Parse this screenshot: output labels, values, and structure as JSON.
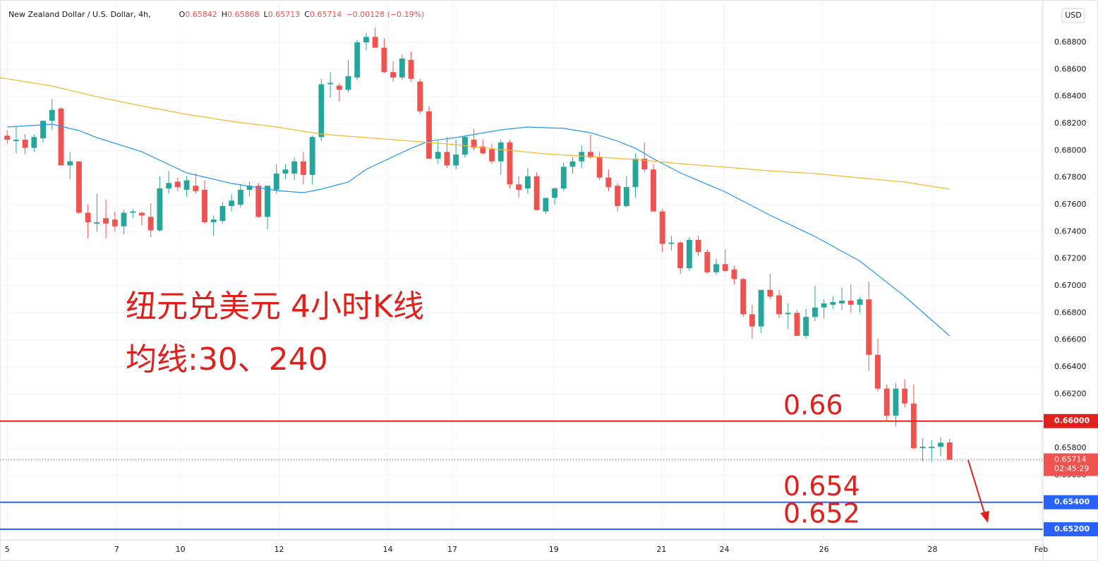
{
  "header": {
    "symbol": "New Zealand Dollar / U.S. Dollar, 4h,",
    "ohlc": [
      {
        "k": "O",
        "v": "0.65842"
      },
      {
        "k": "H",
        "v": "0.65868"
      },
      {
        "k": "L",
        "v": "0.65713"
      },
      {
        "k": "C",
        "v": "0.65714"
      }
    ],
    "change": "−0.00128 (−0.19%)",
    "currency": "USD"
  },
  "chart_data": {
    "type": "candlestick",
    "annotations": [
      "纽元兑美元 4小时K线",
      "均线:30、240"
    ],
    "up_color": "#26a69a",
    "down_color": "#ef5350",
    "xlim": [
      -0.8,
      115.4
    ],
    "xticks": [
      {
        "value": 0,
        "label": "5"
      },
      {
        "value": 12.2,
        "label": "7"
      },
      {
        "value": 19.3,
        "label": "10"
      },
      {
        "value": 30.3,
        "label": "12"
      },
      {
        "value": 42.4,
        "label": "14"
      },
      {
        "value": 49.6,
        "label": "17"
      },
      {
        "value": 60.9,
        "label": "19"
      },
      {
        "value": 72.9,
        "label": "21"
      },
      {
        "value": 79.9,
        "label": "24"
      },
      {
        "value": 91,
        "label": "26"
      },
      {
        "value": 103.1,
        "label": "28"
      },
      {
        "value": 115.2,
        "label": "Feb"
      }
    ],
    "ylim": [
      0.65122,
      0.69087
    ],
    "yticks": [
      {
        "value": 0.656,
        "label": "0.65600"
      },
      {
        "value": 0.658,
        "label": "0.65800"
      },
      {
        "value": 0.66,
        "label": "0.66000"
      },
      {
        "value": 0.662,
        "label": "0.66200"
      },
      {
        "value": 0.664,
        "label": "0.66400"
      },
      {
        "value": 0.666,
        "label": "0.66600"
      },
      {
        "value": 0.668,
        "label": "0.66800"
      },
      {
        "value": 0.67,
        "label": "0.67000"
      },
      {
        "value": 0.672,
        "label": "0.67200"
      },
      {
        "value": 0.674,
        "label": "0.67400"
      },
      {
        "value": 0.676,
        "label": "0.67600"
      },
      {
        "value": 0.678,
        "label": "0.67800"
      },
      {
        "value": 0.68,
        "label": "0.68000"
      },
      {
        "value": 0.682,
        "label": "0.68200"
      },
      {
        "value": 0.684,
        "label": "0.68400"
      },
      {
        "value": 0.686,
        "label": "0.68600"
      },
      {
        "value": 0.688,
        "label": "0.68800"
      }
    ],
    "grid": true,
    "open": [
      0.6811,
      0.6807,
      0.6808,
      0.6802,
      0.6809,
      0.6822,
      0.6831,
      0.6789,
      0.6792,
      0.6754,
      0.6746,
      0.675,
      0.6749,
      0.6744,
      0.6754,
      0.6754,
      0.6751,
      0.6741,
      0.6772,
      0.6777,
      0.6771,
      0.6774,
      0.6771,
      0.6747,
      0.6748,
      0.6759,
      0.676,
      0.6771,
      0.6774,
      0.6751,
      0.6771,
      0.6783,
      0.6783,
      0.6792,
      0.6782,
      0.681,
      0.6849,
      0.6848,
      0.6845,
      0.6854,
      0.688,
      0.6884,
      0.6876,
      0.6858,
      0.6854,
      0.6867,
      0.6851,
      0.6829,
      0.6794,
      0.6799,
      0.6789,
      0.6797,
      0.6808,
      0.6803,
      0.6801,
      0.6792,
      0.6806,
      0.6775,
      0.6772,
      0.6781,
      0.6755,
      0.6765,
      0.6772,
      0.6788,
      0.6792,
      0.6799,
      0.6795,
      0.678,
      0.6774,
      0.6759,
      0.6773,
      0.6794,
      0.6786,
      0.6755,
      0.6731,
      0.6732,
      0.6713,
      0.6734,
      0.6725,
      0.671,
      0.6716,
      0.6712,
      0.6705,
      0.6679,
      0.667,
      0.6697,
      0.6693,
      0.6679,
      0.668,
      0.6663,
      0.6677,
      0.6684,
      0.6686,
      0.6687,
      0.6689,
      0.6686,
      0.669,
      0.6649,
      0.6624,
      0.6604,
      0.6624,
      0.6613,
      0.658,
      0.658,
      0.6581,
      0.65842
    ],
    "high": [
      0.6815,
      0.6818,
      0.6812,
      0.6812,
      0.6822,
      0.6838,
      0.6832,
      0.6799,
      0.6792,
      0.676,
      0.6768,
      0.6764,
      0.6755,
      0.6756,
      0.6757,
      0.6755,
      0.6761,
      0.6781,
      0.6785,
      0.678,
      0.6781,
      0.6783,
      0.6778,
      0.6752,
      0.6762,
      0.6768,
      0.6775,
      0.6777,
      0.6776,
      0.6773,
      0.679,
      0.679,
      0.6795,
      0.6799,
      0.6811,
      0.6853,
      0.6858,
      0.685,
      0.6867,
      0.6882,
      0.6887,
      0.6891,
      0.6883,
      0.6866,
      0.6871,
      0.6873,
      0.6853,
      0.6833,
      0.6807,
      0.681,
      0.6808,
      0.6811,
      0.6816,
      0.6808,
      0.6805,
      0.6808,
      0.6808,
      0.6781,
      0.6787,
      0.6784,
      0.6765,
      0.6773,
      0.6791,
      0.6795,
      0.6804,
      0.6812,
      0.6799,
      0.6786,
      0.6776,
      0.6781,
      0.6798,
      0.6806,
      0.679,
      0.6757,
      0.6737,
      0.6733,
      0.6736,
      0.6737,
      0.6727,
      0.672,
      0.6727,
      0.6715,
      0.6706,
      0.6686,
      0.6696,
      0.6709,
      0.6697,
      0.6687,
      0.6682,
      0.6683,
      0.67,
      0.669,
      0.6692,
      0.6699,
      0.6701,
      0.6692,
      0.6703,
      0.6661,
      0.6627,
      0.6628,
      0.6631,
      0.6627,
      0.6587,
      0.6586,
      0.6588,
      0.65868
    ],
    "low": [
      0.6805,
      0.6798,
      0.6797,
      0.6799,
      0.6806,
      0.6815,
      0.6789,
      0.6779,
      0.6753,
      0.6735,
      0.674,
      0.6735,
      0.674,
      0.6738,
      0.675,
      0.6745,
      0.6736,
      0.674,
      0.6768,
      0.677,
      0.6766,
      0.6768,
      0.6746,
      0.6737,
      0.6746,
      0.6755,
      0.6758,
      0.6766,
      0.675,
      0.6742,
      0.6768,
      0.6779,
      0.6778,
      0.6775,
      0.6775,
      0.6807,
      0.6839,
      0.6836,
      0.6843,
      0.6852,
      0.6874,
      0.6877,
      0.6857,
      0.6851,
      0.6852,
      0.6851,
      0.6827,
      0.6794,
      0.679,
      0.6787,
      0.6786,
      0.6795,
      0.68,
      0.6797,
      0.679,
      0.6782,
      0.6772,
      0.6765,
      0.6768,
      0.6756,
      0.6753,
      0.676,
      0.677,
      0.6783,
      0.6787,
      0.6794,
      0.6778,
      0.677,
      0.6755,
      0.6758,
      0.6765,
      0.6784,
      0.6755,
      0.6725,
      0.6726,
      0.6709,
      0.6711,
      0.6722,
      0.6709,
      0.6708,
      0.671,
      0.6701,
      0.6677,
      0.6661,
      0.6665,
      0.669,
      0.6676,
      0.6668,
      0.6663,
      0.6661,
      0.6674,
      0.6676,
      0.6683,
      0.6682,
      0.668,
      0.668,
      0.6637,
      0.6622,
      0.66,
      0.6596,
      0.661,
      0.6579,
      0.657,
      0.657,
      0.6574,
      0.65713
    ],
    "close": [
      0.6808,
      0.6808,
      0.6802,
      0.681,
      0.6822,
      0.683,
      0.6789,
      0.6792,
      0.6754,
      0.6747,
      0.6747,
      0.6746,
      0.6744,
      0.6754,
      0.6755,
      0.6752,
      0.6741,
      0.6772,
      0.6776,
      0.6773,
      0.6778,
      0.677,
      0.6747,
      0.6749,
      0.6759,
      0.6763,
      0.6771,
      0.6774,
      0.6751,
      0.6774,
      0.6783,
      0.6786,
      0.6792,
      0.6782,
      0.681,
      0.6849,
      0.685,
      0.6845,
      0.6855,
      0.688,
      0.6884,
      0.6876,
      0.6858,
      0.6854,
      0.6868,
      0.6853,
      0.6829,
      0.6794,
      0.6799,
      0.6789,
      0.6797,
      0.681,
      0.6802,
      0.6798,
      0.6792,
      0.6806,
      0.6775,
      0.6771,
      0.6781,
      0.6756,
      0.6765,
      0.6772,
      0.6788,
      0.6792,
      0.6799,
      0.6795,
      0.678,
      0.6773,
      0.6759,
      0.6773,
      0.6794,
      0.6786,
      0.6755,
      0.6731,
      0.6732,
      0.6713,
      0.6734,
      0.6725,
      0.671,
      0.6716,
      0.6711,
      0.6705,
      0.6679,
      0.667,
      0.6697,
      0.6692,
      0.6679,
      0.668,
      0.6663,
      0.6677,
      0.6684,
      0.6687,
      0.6688,
      0.6689,
      0.6686,
      0.669,
      0.6649,
      0.6624,
      0.6604,
      0.6624,
      0.6613,
      0.658,
      0.6581,
      0.6581,
      0.6584,
      0.65714
    ],
    "ma_lines": [
      {
        "color": "#2196f3",
        "x": [
          0,
          5,
          8,
          10,
          15,
          20,
          25,
          30,
          33,
          35,
          38,
          40,
          45,
          47,
          50,
          55,
          58,
          62,
          65,
          68,
          70,
          72,
          75,
          80,
          85,
          90,
          95,
          100,
          105
        ],
        "values": [
          0.68174,
          0.68195,
          0.68148,
          0.68096,
          0.67991,
          0.67835,
          0.67757,
          0.67704,
          0.67689,
          0.67715,
          0.67767,
          0.67861,
          0.68017,
          0.6807,
          0.68096,
          0.68153,
          0.68174,
          0.68164,
          0.68132,
          0.6807,
          0.68017,
          0.67939,
          0.67835,
          0.67694,
          0.67522,
          0.67365,
          0.67183,
          0.66922,
          0.6663
        ]
      },
      {
        "color": "#f5b82e",
        "x": [
          -0.8,
          5,
          10,
          15,
          20,
          25,
          30,
          35,
          40,
          45,
          50,
          55,
          60,
          65,
          70,
          75,
          80,
          85,
          90,
          95,
          100,
          105
        ],
        "values": [
          0.68539,
          0.68477,
          0.68398,
          0.6833,
          0.68268,
          0.68216,
          0.68174,
          0.68122,
          0.68096,
          0.6807,
          0.68043,
          0.68007,
          0.67976,
          0.67955,
          0.67934,
          0.67903,
          0.67877,
          0.6785,
          0.6783,
          0.67798,
          0.67767,
          0.67715
        ]
      }
    ],
    "hlines": [
      {
        "value": 0.66,
        "color": "#e0201c",
        "axis_label": "0.66000",
        "annotation": "0.66"
      },
      {
        "value": 0.654,
        "color": "#2962ff",
        "axis_label": "0.65400",
        "annotation": "0.654"
      },
      {
        "value": 0.652,
        "color": "#2962ff",
        "axis_label": "0.65200",
        "annotation": "0.652"
      }
    ],
    "last_price": {
      "value": 0.65714,
      "label": "0.65714",
      "countdown": "02:45:29"
    }
  }
}
